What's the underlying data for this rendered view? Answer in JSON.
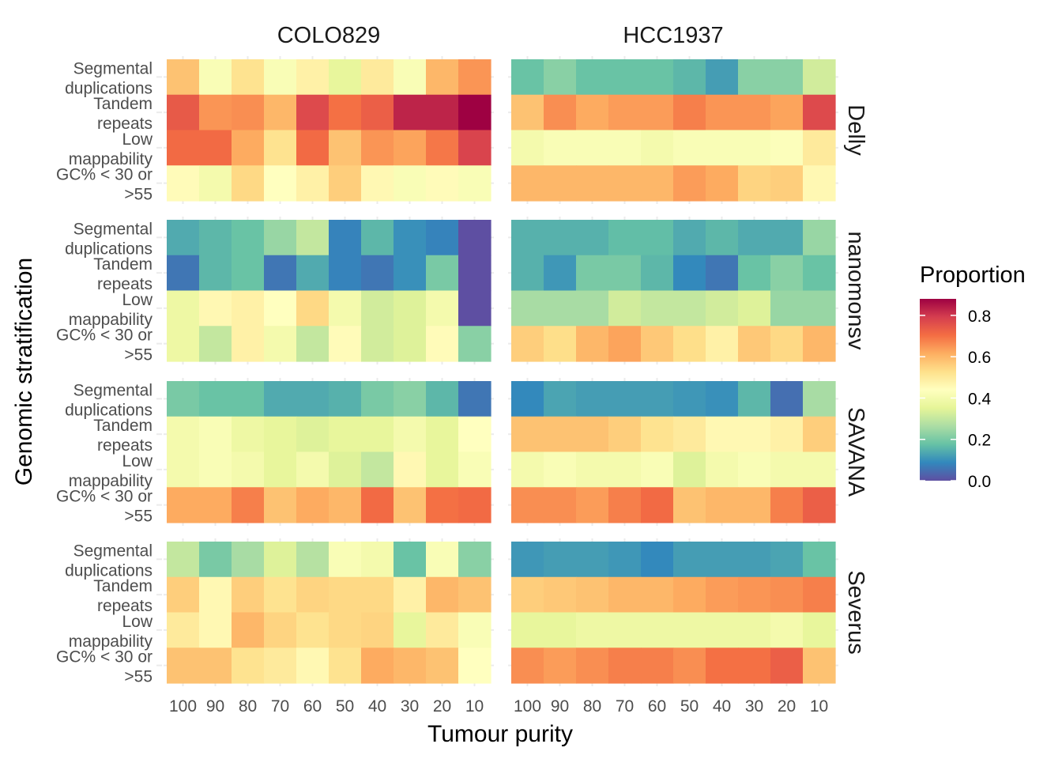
{
  "chart_data": {
    "type": "heatmap",
    "xlabel": "Tumour purity",
    "ylabel": "Genomic stratification",
    "x_categories": [
      "100",
      "90",
      "80",
      "70",
      "60",
      "50",
      "40",
      "30",
      "20",
      "10"
    ],
    "y_categories": [
      {
        "line1": "Segmental",
        "line2": "duplications"
      },
      {
        "line1": "Tandem",
        "line2": "repeats"
      },
      {
        "line1": "Low",
        "line2": "mappability"
      },
      {
        "line1": "GC% < 30 or",
        "line2": ">55"
      }
    ],
    "columns": [
      "COLO829",
      "HCC1937"
    ],
    "rows": [
      "Delly",
      "nanomonsv",
      "SAVANA",
      "Severus"
    ],
    "legend": {
      "title": "Proportion",
      "ticks": [
        "0.0",
        "0.2",
        "0.4",
        "0.6",
        "0.8"
      ],
      "range": [
        0,
        0.88
      ],
      "palette": "Spectral (reversed)"
    },
    "values": {
      "Delly": {
        "COLO829": [
          [
            0.58,
            0.42,
            0.52,
            0.42,
            0.48,
            0.36,
            0.5,
            0.42,
            0.6,
            0.65
          ],
          [
            0.74,
            0.65,
            0.66,
            0.6,
            0.77,
            0.7,
            0.73,
            0.83,
            0.83,
            0.88
          ],
          [
            0.71,
            0.71,
            0.62,
            0.52,
            0.71,
            0.58,
            0.65,
            0.63,
            0.69,
            0.78
          ],
          [
            0.45,
            0.4,
            0.54,
            0.44,
            0.48,
            0.56,
            0.46,
            0.42,
            0.45,
            0.42
          ]
        ],
        "HCC1937": [
          [
            0.18,
            0.22,
            0.18,
            0.18,
            0.18,
            0.16,
            0.12,
            0.22,
            0.22,
            0.32
          ],
          [
            0.58,
            0.66,
            0.62,
            0.64,
            0.64,
            0.68,
            0.65,
            0.65,
            0.63,
            0.77
          ],
          [
            0.4,
            0.42,
            0.42,
            0.42,
            0.4,
            0.42,
            0.42,
            0.42,
            0.43,
            0.5
          ],
          [
            0.6,
            0.6,
            0.6,
            0.6,
            0.6,
            0.64,
            0.62,
            0.55,
            0.56,
            0.46
          ]
        ]
      },
      "nanomonsv": {
        "COLO829": [
          [
            0.14,
            0.16,
            0.18,
            0.24,
            0.3,
            0.08,
            0.16,
            0.1,
            0.08,
            0.0
          ],
          [
            0.06,
            0.16,
            0.18,
            0.06,
            0.14,
            0.08,
            0.06,
            0.1,
            0.2,
            0.0
          ],
          [
            0.38,
            0.46,
            0.48,
            0.44,
            0.54,
            0.4,
            0.32,
            0.34,
            0.4,
            0.0
          ],
          [
            0.38,
            0.3,
            0.48,
            0.4,
            0.3,
            0.45,
            0.32,
            0.34,
            0.45,
            0.22
          ]
        ],
        "HCC1937": [
          [
            0.15,
            0.15,
            0.15,
            0.17,
            0.17,
            0.14,
            0.16,
            0.14,
            0.14,
            0.24
          ],
          [
            0.15,
            0.11,
            0.2,
            0.2,
            0.16,
            0.09,
            0.06,
            0.18,
            0.22,
            0.18
          ],
          [
            0.26,
            0.26,
            0.26,
            0.32,
            0.3,
            0.3,
            0.32,
            0.34,
            0.24,
            0.24
          ],
          [
            0.56,
            0.53,
            0.6,
            0.63,
            0.57,
            0.53,
            0.48,
            0.57,
            0.54,
            0.6
          ]
        ]
      },
      "SAVANA": {
        "COLO829": [
          [
            0.2,
            0.18,
            0.18,
            0.14,
            0.14,
            0.15,
            0.2,
            0.22,
            0.16,
            0.06
          ],
          [
            0.4,
            0.42,
            0.38,
            0.36,
            0.34,
            0.36,
            0.36,
            0.4,
            0.36,
            0.44
          ],
          [
            0.4,
            0.42,
            0.4,
            0.36,
            0.4,
            0.34,
            0.3,
            0.46,
            0.36,
            0.42
          ],
          [
            0.62,
            0.62,
            0.68,
            0.58,
            0.62,
            0.6,
            0.71,
            0.58,
            0.7,
            0.71
          ]
        ],
        "HCC1937": [
          [
            0.09,
            0.13,
            0.12,
            0.12,
            0.12,
            0.11,
            0.1,
            0.16,
            0.05,
            0.26
          ],
          [
            0.58,
            0.58,
            0.58,
            0.56,
            0.52,
            0.5,
            0.46,
            0.46,
            0.48,
            0.56
          ],
          [
            0.4,
            0.42,
            0.4,
            0.4,
            0.42,
            0.34,
            0.4,
            0.42,
            0.4,
            0.4
          ],
          [
            0.66,
            0.66,
            0.64,
            0.68,
            0.71,
            0.58,
            0.6,
            0.6,
            0.68,
            0.73
          ]
        ]
      },
      "Severus": {
        "COLO829": [
          [
            0.3,
            0.2,
            0.26,
            0.34,
            0.28,
            0.42,
            0.4,
            0.18,
            0.42,
            0.22
          ],
          [
            0.56,
            0.46,
            0.56,
            0.52,
            0.55,
            0.54,
            0.54,
            0.48,
            0.6,
            0.58
          ],
          [
            0.5,
            0.46,
            0.6,
            0.55,
            0.52,
            0.54,
            0.55,
            0.36,
            0.5,
            0.42
          ],
          [
            0.58,
            0.58,
            0.52,
            0.5,
            0.46,
            0.52,
            0.62,
            0.6,
            0.58,
            0.44
          ]
        ],
        "HCC1937": [
          [
            0.11,
            0.12,
            0.12,
            0.11,
            0.09,
            0.12,
            0.12,
            0.12,
            0.13,
            0.18
          ],
          [
            0.56,
            0.57,
            0.58,
            0.6,
            0.6,
            0.62,
            0.64,
            0.65,
            0.66,
            0.68
          ],
          [
            0.36,
            0.36,
            0.38,
            0.38,
            0.38,
            0.38,
            0.38,
            0.38,
            0.4,
            0.36
          ],
          [
            0.66,
            0.64,
            0.66,
            0.68,
            0.68,
            0.66,
            0.7,
            0.7,
            0.73,
            0.58
          ]
        ]
      }
    }
  }
}
